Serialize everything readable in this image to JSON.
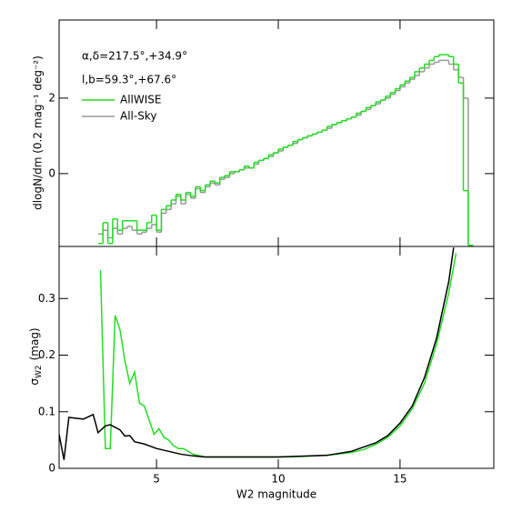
{
  "chart_data": [
    {
      "type": "histogram",
      "ylabel": "dlogN/dm (0.2 mag⁻¹ deg⁻²)",
      "annotations": [
        "α,δ=217.5°,+34.9°",
        "l,b=59.3°,+67.6°"
      ],
      "legend": "upper left",
      "xlim": [
        1,
        18.85
      ],
      "ylim": [
        -1.93,
        4.07
      ],
      "yticks": [
        0,
        2
      ],
      "bins": [
        2.6,
        2.8,
        3.0,
        3.2,
        3.4,
        3.6,
        3.8,
        4.0,
        4.2,
        4.4,
        4.6,
        4.8,
        5.0,
        5.2,
        5.4,
        5.6,
        5.8,
        6.0,
        6.2,
        6.4,
        6.6,
        6.8,
        7.0,
        7.2,
        7.4,
        7.6,
        7.8,
        8.0,
        8.2,
        8.4,
        8.6,
        8.8,
        9.0,
        9.2,
        9.4,
        9.6,
        9.8,
        10.0,
        10.2,
        10.4,
        10.6,
        10.8,
        11.0,
        11.2,
        11.4,
        11.6,
        11.8,
        12.0,
        12.2,
        12.4,
        12.6,
        12.8,
        13.0,
        13.2,
        13.4,
        13.6,
        13.8,
        14.0,
        14.2,
        14.4,
        14.6,
        14.8,
        15.0,
        15.2,
        15.4,
        15.6,
        15.8,
        16.0,
        16.2,
        16.4,
        16.6,
        16.8,
        17.0,
        17.2,
        17.4,
        17.6,
        17.8,
        18.0
      ],
      "series": [
        {
          "name": "AllWISE",
          "color": "#22dd22",
          "values": [
            -1.85,
            -1.3,
            -1.85,
            -1.2,
            -1.5,
            -1.25,
            -1.25,
            -1.25,
            -1.5,
            -1.5,
            -1.3,
            -1.1,
            -1.5,
            -0.95,
            -0.85,
            -0.7,
            -0.55,
            -0.7,
            -0.5,
            -0.6,
            -0.35,
            -0.45,
            -0.3,
            -0.2,
            -0.25,
            -0.1,
            -0.05,
            0.05,
            0.05,
            0.1,
            0.2,
            0.15,
            0.3,
            0.35,
            0.4,
            0.5,
            0.55,
            0.65,
            0.7,
            0.75,
            0.85,
            0.9,
            0.95,
            1.0,
            1.05,
            1.1,
            1.15,
            1.25,
            1.3,
            1.35,
            1.4,
            1.45,
            1.5,
            1.6,
            1.65,
            1.75,
            1.8,
            1.9,
            1.95,
            2.05,
            2.15,
            2.25,
            2.35,
            2.45,
            2.55,
            2.7,
            2.8,
            2.9,
            3.0,
            3.1,
            3.15,
            3.15,
            3.1,
            2.9,
            2.4,
            -0.45,
            -1.9
          ]
        },
        {
          "name": "All-Sky",
          "color": "#999999",
          "values": [
            -1.6,
            -1.5,
            -1.7,
            -1.45,
            -1.6,
            -1.45,
            -1.4,
            -1.5,
            -1.6,
            -1.55,
            -1.45,
            -1.35,
            -1.55,
            -1.05,
            -0.95,
            -0.8,
            -0.6,
            -0.8,
            -0.55,
            -0.65,
            -0.4,
            -0.5,
            -0.35,
            -0.25,
            -0.3,
            -0.15,
            -0.1,
            0.0,
            0.05,
            0.1,
            0.15,
            0.15,
            0.25,
            0.35,
            0.4,
            0.45,
            0.55,
            0.6,
            0.7,
            0.75,
            0.8,
            0.9,
            0.95,
            1.0,
            1.05,
            1.1,
            1.15,
            1.2,
            1.3,
            1.35,
            1.4,
            1.45,
            1.5,
            1.55,
            1.65,
            1.7,
            1.8,
            1.85,
            1.95,
            2.0,
            2.1,
            2.2,
            2.3,
            2.4,
            2.5,
            2.6,
            2.7,
            2.8,
            2.9,
            2.95,
            3.0,
            3.0,
            2.9,
            2.75,
            2.55,
            2.0,
            -1.9
          ]
        }
      ]
    },
    {
      "type": "line",
      "xlabel": "W2 magnitude",
      "ylabel": {
        "symbol": "σ",
        "sub": "W2",
        "unit": "(mag)"
      },
      "xlim": [
        1,
        18.85
      ],
      "ylim": [
        0,
        0.392
      ],
      "xticks": [
        5,
        10,
        15
      ],
      "yticks": [
        0,
        0.1,
        0.2,
        0.3
      ],
      "series": [
        {
          "name": "AllWISE",
          "color": "#22dd22",
          "x": [
            2.7,
            2.9,
            3.1,
            3.3,
            3.5,
            3.7,
            3.9,
            4.1,
            4.3,
            4.5,
            4.7,
            4.9,
            5.1,
            5.3,
            5.5,
            5.7,
            5.9,
            6.1,
            6.5,
            7,
            8,
            9,
            10,
            11,
            12,
            13,
            13.5,
            14,
            14.5,
            15,
            15.5,
            16,
            16.5,
            17,
            17.3
          ],
          "values": [
            0.35,
            0.035,
            0.035,
            0.27,
            0.245,
            0.19,
            0.15,
            0.17,
            0.115,
            0.11,
            0.085,
            0.06,
            0.07,
            0.055,
            0.05,
            0.04,
            0.035,
            0.035,
            0.025,
            0.02,
            0.02,
            0.02,
            0.02,
            0.021,
            0.023,
            0.028,
            0.033,
            0.042,
            0.055,
            0.075,
            0.105,
            0.15,
            0.22,
            0.31,
            0.38
          ]
        },
        {
          "name": "All-Sky",
          "color": "#000000",
          "x": [
            1.0,
            1.2,
            1.4,
            2.0,
            2.4,
            2.6,
            2.9,
            3.1,
            3.5,
            3.7,
            3.9,
            4.1,
            4.5,
            5,
            5.5,
            6,
            6.5,
            7,
            10,
            12,
            13,
            14,
            14.5,
            15,
            15.5,
            16,
            16.5,
            17,
            17.2
          ],
          "values": [
            0.06,
            0.015,
            0.09,
            0.087,
            0.095,
            0.063,
            0.075,
            0.077,
            0.068,
            0.057,
            0.058,
            0.047,
            0.043,
            0.035,
            0.03,
            0.025,
            0.022,
            0.02,
            0.02,
            0.023,
            0.03,
            0.045,
            0.058,
            0.08,
            0.11,
            0.16,
            0.23,
            0.33,
            0.39
          ]
        }
      ]
    }
  ]
}
